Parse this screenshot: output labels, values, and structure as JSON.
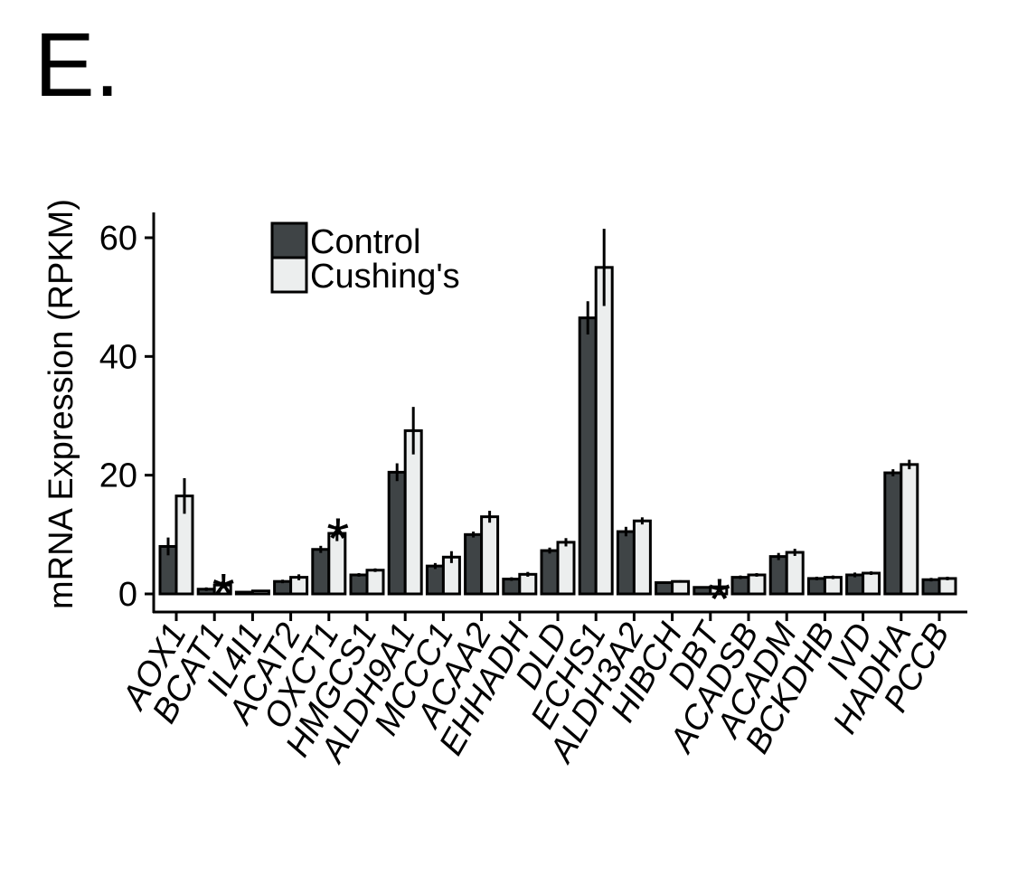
{
  "panel_label": "E.",
  "chart_data": {
    "type": "bar",
    "title": "",
    "xlabel": "",
    "ylabel": "mRNA Expression (RPKM)",
    "ylim": [
      0,
      64
    ],
    "yticks": [
      0,
      20,
      40,
      60
    ],
    "legend_position": "top-left",
    "categories": [
      "AOX1",
      "BCAT1",
      "IL4I1",
      "ACAT2",
      "OXCT1",
      "HMGCS1",
      "ALDH9A1",
      "MCCC1",
      "ACAA2",
      "EHHADH",
      "DLD",
      "ECHS1",
      "ALDH3A2",
      "HIBCH",
      "DBT",
      "ACADSB",
      "ACADM",
      "BCKDHB",
      "IVD",
      "HADHA",
      "PCCB"
    ],
    "series": [
      {
        "name": "Control",
        "color": "#3f4446",
        "values": [
          8.0,
          0.8,
          0.3,
          2.1,
          7.5,
          3.2,
          20.5,
          4.7,
          10.0,
          2.5,
          7.3,
          46.5,
          10.5,
          1.9,
          1.1,
          2.8,
          6.3,
          2.6,
          3.2,
          20.4,
          2.4
        ],
        "errors": [
          1.5,
          0.3,
          0.1,
          0.3,
          0.6,
          0.3,
          1.5,
          0.5,
          0.5,
          0.3,
          0.5,
          2.8,
          0.8,
          0.2,
          0.1,
          0.3,
          0.6,
          0.3,
          0.4,
          0.6,
          0.3
        ]
      },
      {
        "name": "Cushing's",
        "color": "#eceeee",
        "values": [
          16.5,
          1.5,
          0.5,
          2.8,
          10.2,
          4.0,
          27.5,
          6.2,
          13.0,
          3.3,
          8.7,
          55.0,
          12.3,
          2.1,
          1.2,
          3.2,
          7.0,
          2.8,
          3.5,
          21.8,
          2.6
        ],
        "errors": [
          3.0,
          0.6,
          0.1,
          0.5,
          1.3,
          0.3,
          4.0,
          1.0,
          1.0,
          0.4,
          0.7,
          6.5,
          0.6,
          0.2,
          0.1,
          0.3,
          0.6,
          0.3,
          0.3,
          0.8,
          0.3
        ]
      }
    ],
    "annotations": [
      {
        "category": "BCAT1",
        "text": "*"
      },
      {
        "category": "OXCT1",
        "text": "*"
      },
      {
        "category": "DBT",
        "text": "*"
      }
    ]
  }
}
